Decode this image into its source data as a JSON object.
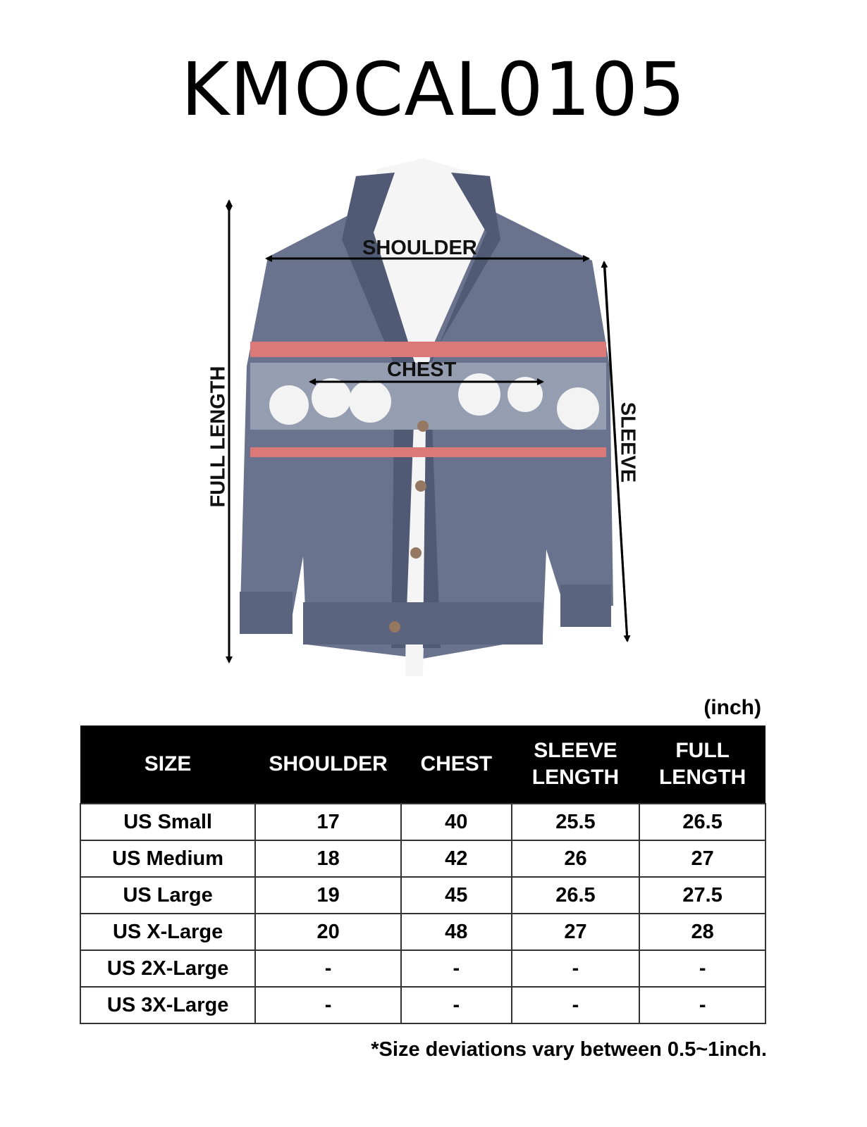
{
  "title": "KMOCAL0105",
  "figure": {
    "labels": {
      "shoulder": "SHOULDER",
      "chest": "CHEST",
      "sleeve": "SLEEVE",
      "full_length": "FULL LENGTH"
    },
    "colors": {
      "navy": "#3d4868",
      "red": "#d24b4b",
      "white": "#f2f2f2"
    }
  },
  "unit": "(inch)",
  "table": {
    "headers": [
      "SIZE",
      "SHOULDER",
      "CHEST",
      "SLEEVE\nLENGTH",
      "FULL\nLENGTH"
    ],
    "rows": [
      [
        "US Small",
        "17",
        "40",
        "25.5",
        "26.5"
      ],
      [
        "US Medium",
        "18",
        "42",
        "26",
        "27"
      ],
      [
        "US Large",
        "19",
        "45",
        "26.5",
        "27.5"
      ],
      [
        "US X-Large",
        "20",
        "48",
        "27",
        "28"
      ],
      [
        "US 2X-Large",
        "-",
        "-",
        "-",
        "-"
      ],
      [
        "US 3X-Large",
        "-",
        "-",
        "-",
        "-"
      ]
    ]
  },
  "note": "*Size deviations vary between 0.5~1inch."
}
